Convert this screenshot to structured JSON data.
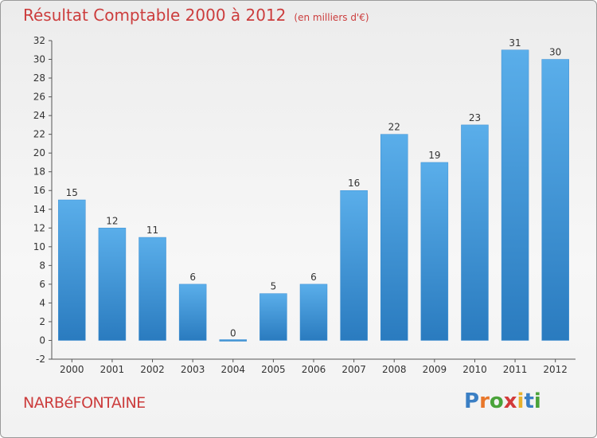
{
  "title": "Résultat Comptable 2000 à 2012",
  "unit": "(en milliers d'€)",
  "commune": "NARBéFONTAINE",
  "logo": {
    "letters": [
      "P",
      "r",
      "o",
      "x",
      "i",
      "t",
      "i"
    ],
    "colors": [
      "#3b7fc4",
      "#e8772b",
      "#4aa33a",
      "#d23a3a",
      "#e8b12b",
      "#3b7fc4",
      "#4aa33a"
    ]
  },
  "colors": {
    "bar": "#4f9fe0",
    "bar_dark": "#2f7fc2",
    "title": "#cc3d3d"
  },
  "chart_data": {
    "type": "bar",
    "categories": [
      "2000",
      "2001",
      "2002",
      "2003",
      "2004",
      "2005",
      "2006",
      "2007",
      "2008",
      "2009",
      "2010",
      "2011",
      "2012"
    ],
    "values": [
      15,
      12,
      11,
      6,
      0,
      5,
      6,
      16,
      22,
      19,
      23,
      31,
      30
    ],
    "ylim": [
      -2,
      32
    ],
    "yticks": [
      -2,
      0,
      2,
      4,
      6,
      8,
      10,
      12,
      14,
      16,
      18,
      20,
      22,
      24,
      26,
      28,
      30,
      32
    ],
    "grid": false
  }
}
